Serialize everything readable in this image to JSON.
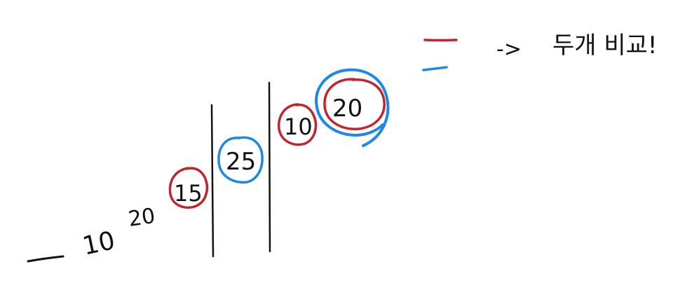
{
  "colors": {
    "ink": "#111111",
    "red": "#c0262d",
    "blue": "#1e88e5",
    "background": "#ffffff"
  },
  "numbers": {
    "n1": "10",
    "n2": "20",
    "n3": "15",
    "n4": "25",
    "n5": "10",
    "n6": "20"
  },
  "legend": {
    "arrow": "->",
    "note": "두개 비교!"
  }
}
